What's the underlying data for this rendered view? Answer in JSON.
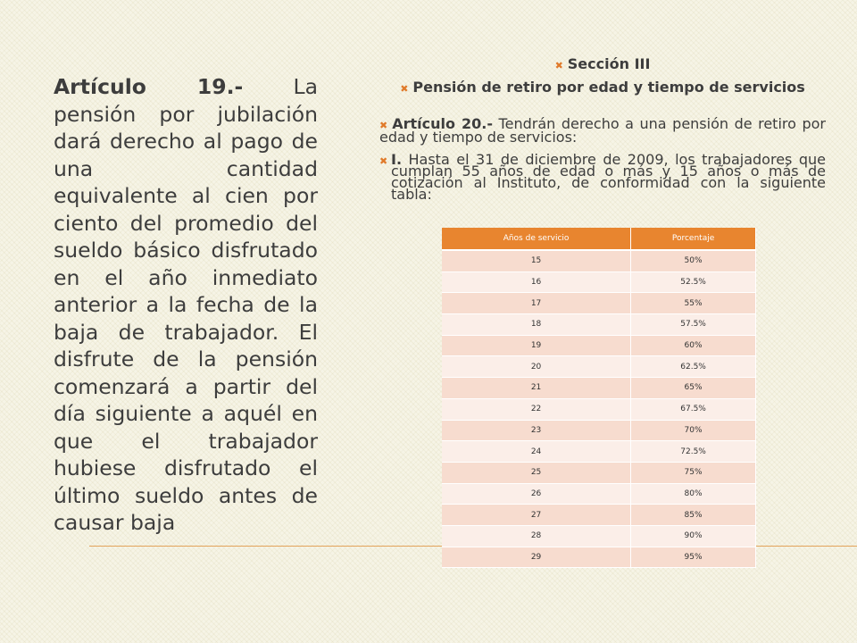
{
  "left": {
    "lead": "Artículo 19.-",
    "text": " La pensión por jubilación dará derecho al pago de una cantidad equivalente al cien por ciento del promedio del sueldo básico disfrutado en el año inmediato anterior a la fecha de la baja de trabajador. El disfrute de la pensión comenzará a partir del día siguiente a aquél en que el trabajador hubiese disfrutado el último sueldo antes de causar baja"
  },
  "right": {
    "section": "Sección III",
    "subtitle": "Pensión de retiro por edad y tiempo de servicios",
    "article_lead": "Artículo 20.-",
    "article_text": " Tendrán derecho a una pensión de retiro por edad y tiempo de servicios:",
    "item_lead": "I.",
    "item_text": " Hasta el 31 de diciembre de 2009, los trabajadores que cumplan 55 años de edad o más y 15 años o más de cotización al Instituto, de conformidad con la siguiente tabla:"
  },
  "bullet": "✖",
  "table": {
    "headers": [
      "Años de servicio",
      "Porcentaje"
    ],
    "rows": [
      [
        "15",
        "50%"
      ],
      [
        "16",
        "52.5%"
      ],
      [
        "17",
        "55%"
      ],
      [
        "18",
        "57.5%"
      ],
      [
        "19",
        "60%"
      ],
      [
        "20",
        "62.5%"
      ],
      [
        "21",
        "65%"
      ],
      [
        "22",
        "67.5%"
      ],
      [
        "23",
        "70%"
      ],
      [
        "24",
        "72.5%"
      ],
      [
        "25",
        "75%"
      ],
      [
        "26",
        "80%"
      ],
      [
        "27",
        "85%"
      ],
      [
        "28",
        "90%"
      ],
      [
        "29",
        "95%"
      ]
    ]
  },
  "colors": {
    "accent": "#e8852f",
    "row_odd": "#f7dccf",
    "row_even": "#fbeee8"
  }
}
